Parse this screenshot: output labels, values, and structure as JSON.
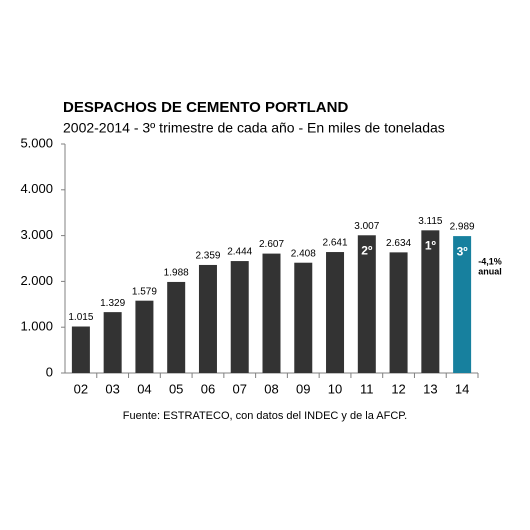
{
  "chart_data": {
    "type": "bar",
    "title": "DESPACHOS DE CEMENTO PORTLAND",
    "subtitle": "2002-2014 - 3º trimestre de cada año - En miles de toneladas",
    "categories": [
      "02",
      "03",
      "04",
      "05",
      "06",
      "07",
      "08",
      "09",
      "10",
      "11",
      "12",
      "13",
      "14"
    ],
    "values": [
      1015,
      1329,
      1579,
      1988,
      2359,
      2444,
      2607,
      2408,
      2641,
      3007,
      2634,
      3115,
      2989
    ],
    "value_labels": [
      "1.015",
      "1.329",
      "1.579",
      "1.988",
      "2.359",
      "2.444",
      "2.607",
      "2.408",
      "2.641",
      "3.007",
      "2.634",
      "3.115",
      "2.989"
    ],
    "colors": [
      "#333333",
      "#333333",
      "#333333",
      "#333333",
      "#333333",
      "#333333",
      "#333333",
      "#333333",
      "#333333",
      "#333333",
      "#333333",
      "#333333",
      "#17809e"
    ],
    "rank_labels": [
      null,
      null,
      null,
      null,
      null,
      null,
      null,
      null,
      null,
      "2º",
      null,
      "1º",
      "3º"
    ],
    "annotation": [
      "-4,1%",
      "anual"
    ],
    "source": "Fuente: ESTRATECO, con datos del INDEC y de la AFCP.",
    "ylim": [
      0,
      5000
    ],
    "yticks": [
      0,
      {
        "value": 1000,
        "label": "1.000"
      },
      {
        "value": 2000,
        "label": "2.000"
      },
      {
        "value": 3000,
        "label": "3.000"
      },
      {
        "value": 4000,
        "label": "4.000"
      },
      {
        "value": 5000,
        "label": "5.000"
      }
    ],
    "grid": false
  }
}
